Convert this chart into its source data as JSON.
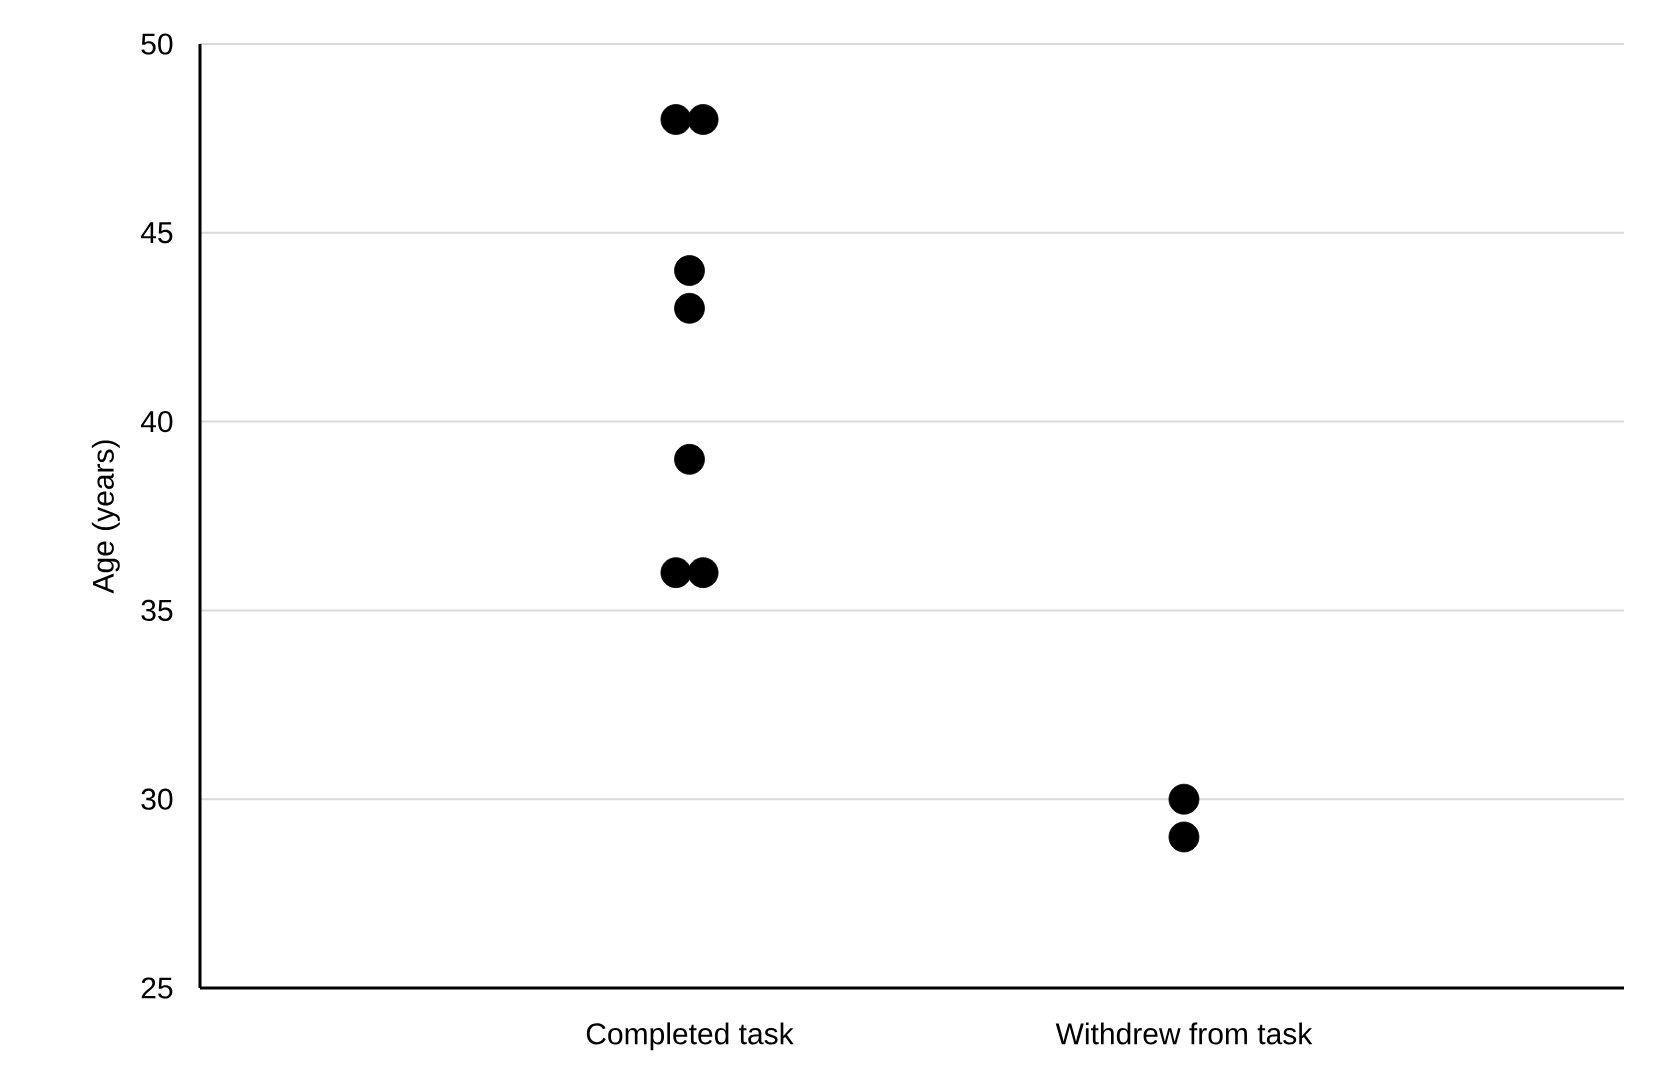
{
  "chart_data": {
    "type": "scatter",
    "ylabel": "Age (years)",
    "categories": [
      "Completed  task",
      "Withdrew from task"
    ],
    "ylim": [
      25,
      50
    ],
    "yticks": [
      25,
      30,
      35,
      40,
      45,
      50
    ],
    "grid": "y",
    "series": [
      {
        "color": "#000000",
        "x": [
          "Completed  task",
          "Completed  task",
          "Completed  task",
          "Completed  task",
          "Completed  task",
          "Completed  task",
          "Completed  task",
          "Withdrew from task",
          "Withdrew from task"
        ],
        "values": [
          48,
          48,
          44,
          43,
          39,
          36,
          36,
          30,
          29
        ]
      }
    ]
  }
}
